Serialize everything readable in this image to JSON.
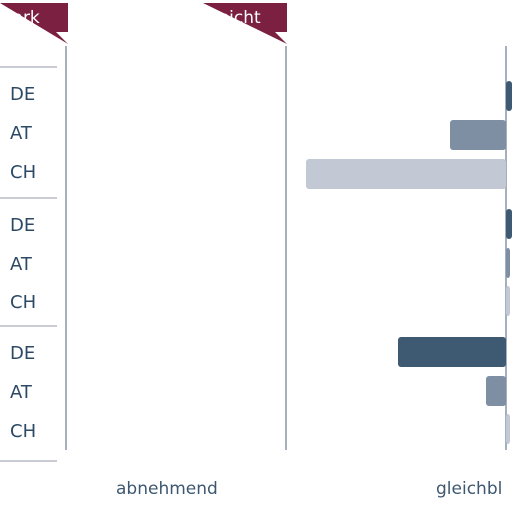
{
  "chart_data": {
    "type": "bar",
    "orientation": "horizontal",
    "tags": [
      {
        "label": "stark"
      },
      {
        "label": "leicht"
      }
    ],
    "x_categories": [
      "abnehmend",
      "gleichbl"
    ],
    "groups": [
      {
        "rows": [
          {
            "country": "DE",
            "value": 0.03
          },
          {
            "country": "AT",
            "value": -0.28
          },
          {
            "country": "CH",
            "value": -1.0
          }
        ]
      },
      {
        "rows": [
          {
            "country": "DE",
            "value": 0.03
          },
          {
            "country": "AT",
            "value": 0.02
          },
          {
            "country": "CH",
            "value": 0.02
          }
        ]
      },
      {
        "rows": [
          {
            "country": "DE",
            "value": -0.54
          },
          {
            "country": "AT",
            "value": -0.1
          },
          {
            "country": "CH",
            "value": 0.02
          }
        ]
      }
    ],
    "colors": {
      "tag": "#7b2040",
      "DE": "#3e5a73",
      "AT": "#7f8fa3",
      "CH": "#c3c9d4",
      "divider": "#c9cdd3",
      "axis": "#8795a5"
    }
  }
}
